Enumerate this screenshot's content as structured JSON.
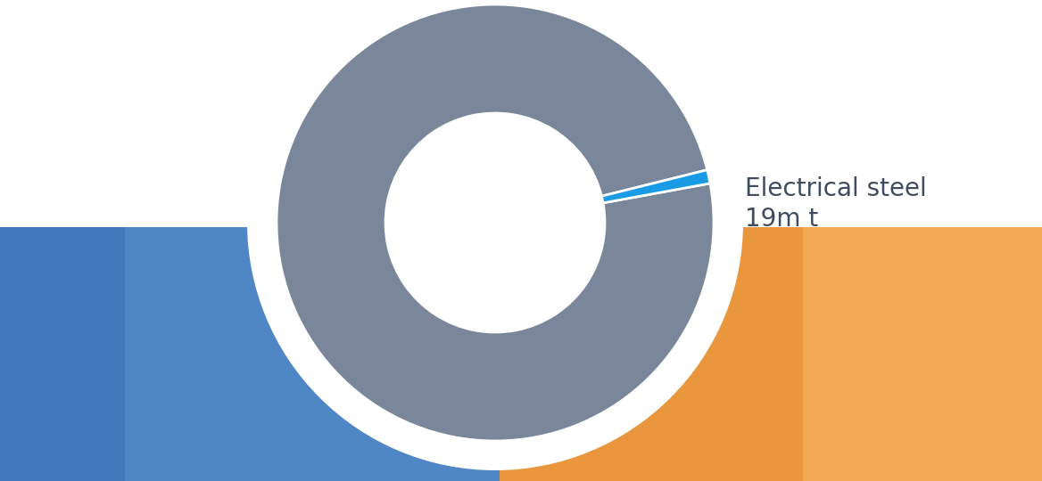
{
  "chart_data": {
    "type": "donut",
    "categories": [
      null,
      "Electrical steel"
    ],
    "values": [
      1870,
      19
    ],
    "value_labels": [
      null,
      "19m t"
    ],
    "colors": [
      "#7a8699",
      "#1a9be6"
    ],
    "data_labels": true
  }
}
